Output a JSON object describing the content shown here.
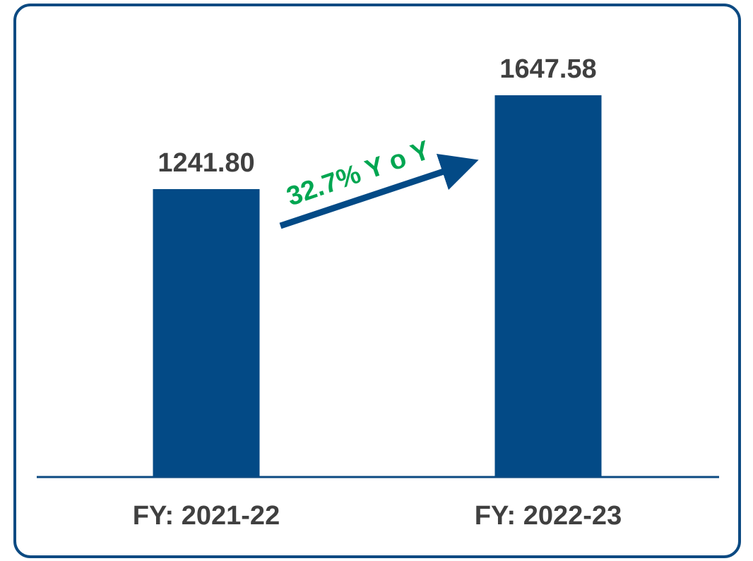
{
  "chart_data": {
    "type": "bar",
    "categories": [
      "FY: 2021-22",
      "FY: 2022-23"
    ],
    "values": [
      1241.8,
      1647.58
    ],
    "value_labels": [
      "1241.80",
      "1647.58"
    ],
    "color": "#034a86",
    "annotation": "32.7% Y o Y"
  }
}
